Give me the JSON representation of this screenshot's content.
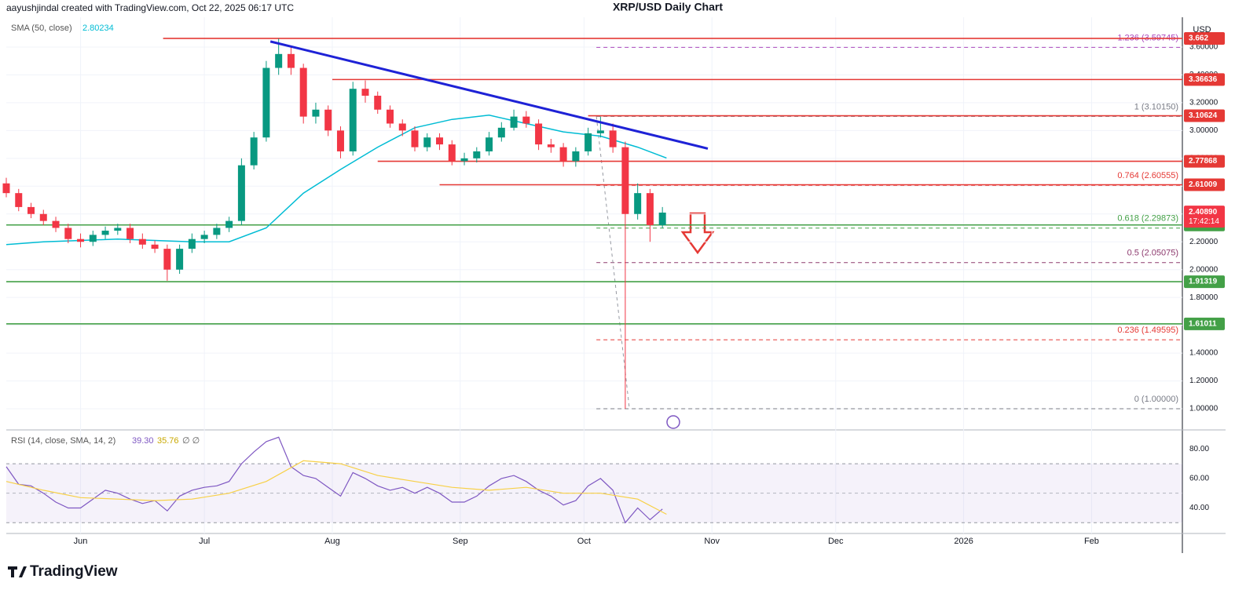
{
  "header": {
    "author_line": "aayushjindal created with TradingView.com, Oct 22, 2025 06:17 UTC",
    "title": "XRP/USD Daily Chart",
    "currency": "USD"
  },
  "chart_data": [
    {
      "type": "candlestick",
      "x": [
        0,
        3,
        6,
        9,
        12,
        15,
        18,
        21,
        24,
        27,
        30,
        33,
        36,
        39,
        42,
        45,
        48,
        51,
        54,
        57,
        60,
        63,
        66,
        69,
        72,
        75,
        78,
        81,
        84,
        87,
        90,
        93,
        96,
        99,
        102,
        105,
        108,
        111,
        114,
        117,
        120,
        123,
        126,
        129,
        132,
        135,
        138,
        141,
        144,
        147,
        150,
        153,
        156,
        159
      ],
      "open": [
        2.62,
        2.55,
        2.45,
        2.4,
        2.35,
        2.3,
        2.22,
        2.2,
        2.25,
        2.28,
        2.3,
        2.22,
        2.18,
        2.15,
        2.0,
        2.15,
        2.22,
        2.25,
        2.3,
        2.35,
        2.75,
        2.95,
        3.45,
        3.55,
        3.45,
        3.1,
        3.15,
        3.0,
        2.85,
        3.3,
        3.25,
        3.15,
        3.05,
        3.0,
        2.88,
        2.95,
        2.9,
        2.78,
        2.8,
        2.85,
        2.95,
        3.02,
        3.1,
        3.05,
        2.9,
        2.88,
        2.78,
        2.85,
        2.98,
        3.0,
        2.88,
        2.4,
        2.55,
        2.32
      ],
      "high": [
        2.66,
        2.58,
        2.48,
        2.43,
        2.38,
        2.33,
        2.26,
        2.28,
        2.31,
        2.33,
        2.33,
        2.26,
        2.21,
        2.18,
        2.18,
        2.26,
        2.28,
        2.33,
        2.38,
        2.8,
        2.99,
        3.5,
        3.66,
        3.6,
        3.48,
        3.2,
        3.18,
        3.03,
        3.35,
        3.36,
        3.28,
        3.18,
        3.08,
        3.03,
        2.98,
        2.98,
        2.93,
        2.84,
        2.88,
        2.99,
        3.06,
        3.15,
        3.14,
        3.08,
        2.94,
        2.91,
        2.88,
        3.02,
        3.1,
        3.05,
        2.92,
        2.62,
        2.58,
        2.45
      ],
      "low": [
        2.52,
        2.42,
        2.37,
        2.32,
        2.27,
        2.19,
        2.16,
        2.17,
        2.22,
        2.25,
        2.19,
        2.15,
        2.12,
        1.92,
        1.97,
        2.12,
        2.19,
        2.22,
        2.27,
        2.32,
        2.72,
        2.92,
        3.4,
        3.4,
        3.05,
        3.05,
        2.96,
        2.8,
        2.82,
        3.2,
        3.12,
        3.02,
        2.96,
        2.85,
        2.85,
        2.86,
        2.75,
        2.75,
        2.77,
        2.82,
        2.92,
        3.0,
        3.02,
        2.86,
        2.84,
        2.74,
        2.74,
        2.82,
        2.95,
        2.84,
        1.0,
        2.36,
        2.2,
        2.3
      ],
      "close": [
        2.55,
        2.45,
        2.4,
        2.35,
        2.3,
        2.22,
        2.2,
        2.25,
        2.28,
        2.3,
        2.22,
        2.18,
        2.15,
        2.0,
        2.15,
        2.22,
        2.25,
        2.3,
        2.35,
        2.75,
        2.95,
        3.45,
        3.55,
        3.45,
        3.1,
        3.15,
        3.0,
        2.85,
        3.3,
        3.25,
        3.15,
        3.05,
        3.0,
        2.88,
        2.95,
        2.9,
        2.78,
        2.8,
        2.85,
        2.95,
        3.02,
        3.1,
        3.05,
        2.9,
        2.88,
        2.78,
        2.85,
        2.98,
        3.0,
        2.88,
        2.4,
        2.55,
        2.32,
        2.41
      ],
      "up_color": "#089981",
      "down_color": "#f23645",
      "xlim": [
        0,
        285
      ],
      "xticks": [
        {
          "value": 18,
          "label": "Jun"
        },
        {
          "value": 48,
          "label": "Jul"
        },
        {
          "value": 79,
          "label": "Aug"
        },
        {
          "value": 110,
          "label": "Sep"
        },
        {
          "value": 140,
          "label": "Oct"
        },
        {
          "value": 171,
          "label": "Nov"
        },
        {
          "value": 201,
          "label": "Dec"
        },
        {
          "value": 232,
          "label": "2026"
        },
        {
          "value": 263,
          "label": "Feb"
        }
      ],
      "ylim": [
        0.848,
        3.814
      ],
      "yticks": [
        {
          "value": 1.0,
          "label": "1.00000"
        },
        {
          "value": 1.2,
          "label": "1.20000"
        },
        {
          "value": 1.4,
          "label": "1.40000"
        },
        {
          "value": 1.6,
          "label": "1.60000"
        },
        {
          "value": 1.8,
          "label": "1.80000"
        },
        {
          "value": 2.0,
          "label": "2.00000"
        },
        {
          "value": 2.2,
          "label": "2.20000"
        },
        {
          "value": 2.4,
          "label": "2.40000"
        },
        {
          "value": 2.6,
          "label": "2.60000"
        },
        {
          "value": 2.8,
          "label": "2.80000"
        },
        {
          "value": 3.0,
          "label": "3.00000"
        },
        {
          "value": 3.2,
          "label": "3.20000"
        },
        {
          "value": 3.4,
          "label": "3.40000"
        },
        {
          "value": 3.6,
          "label": "3.60000"
        }
      ],
      "sma": {
        "name": "SMA (50, close)",
        "value": 2.80234,
        "color": "#00bcd4",
        "x": [
          0,
          9,
          18,
          27,
          36,
          45,
          54,
          63,
          72,
          81,
          90,
          99,
          108,
          117,
          126,
          135,
          144,
          153,
          160
        ],
        "values": [
          2.18,
          2.2,
          2.21,
          2.22,
          2.21,
          2.2,
          2.2,
          2.3,
          2.55,
          2.72,
          2.88,
          3.02,
          3.08,
          3.11,
          3.05,
          2.99,
          2.96,
          2.88,
          2.80234
        ]
      },
      "levels": [
        {
          "value": 3.662,
          "start": 38,
          "color": "#e53935"
        },
        {
          "value": 3.36636,
          "start": 79,
          "color": "#e53935"
        },
        {
          "value": 3.10624,
          "start": 141,
          "color": "#e53935"
        },
        {
          "value": 2.77868,
          "start": 90,
          "color": "#e53935"
        },
        {
          "value": 2.61009,
          "start": 105,
          "color": "#e53935"
        },
        {
          "value": 2.32107,
          "start": 0,
          "color": "#43a047"
        },
        {
          "value": 1.91319,
          "start": 0,
          "color": "#43a047"
        },
        {
          "value": 1.61011,
          "start": 0,
          "color": "#43a047"
        }
      ],
      "fib": [
        {
          "value": 3.59745,
          "label": "1.236 (3.59745)",
          "color": "#ab47bc"
        },
        {
          "value": 3.1015,
          "label": "1 (3.10150)",
          "color": "#787b86"
        },
        {
          "value": 2.60555,
          "label": "0.764 (2.60555)",
          "color": "#e53935"
        },
        {
          "value": 2.29873,
          "label": "0.618 (2.29873)",
          "color": "#43a047"
        },
        {
          "value": 2.05075,
          "label": "0.5 (2.05075)",
          "color": "#8d3a6e"
        },
        {
          "value": 1.49595,
          "label": "0.236 (1.49595)",
          "color": "#e53935"
        },
        {
          "value": 1.0,
          "label": "0 (1.00000)",
          "color": "#787b86"
        }
      ],
      "fib_anchor": {
        "x": [
          143,
          151
        ],
        "values": [
          3.1015,
          1.0
        ]
      },
      "trendline": {
        "x": [
          64,
          170
        ],
        "values": [
          3.64,
          2.87
        ],
        "color": "#1e22d6"
      },
      "last_price": {
        "value": 2.4089,
        "label": "2.40890",
        "countdown": "17:42:14",
        "color": "#f23645"
      }
    },
    {
      "type": "line",
      "name": "RSI (14, close, SMA, 14, 2)",
      "extra": "∅ ∅",
      "ylim": [
        22.7,
        90.8
      ],
      "yticks": [
        {
          "value": 40,
          "label": "40.00"
        },
        {
          "value": 60,
          "label": "60.00"
        },
        {
          "value": 80,
          "label": "80.00"
        }
      ],
      "band": [
        30,
        70
      ],
      "midline": 50,
      "series": [
        {
          "color": "#7e57c2",
          "last_label": "39.30",
          "x": [
            0,
            3,
            6,
            9,
            12,
            15,
            18,
            21,
            24,
            27,
            30,
            33,
            36,
            39,
            42,
            45,
            48,
            51,
            54,
            57,
            60,
            63,
            66,
            69,
            72,
            75,
            78,
            81,
            84,
            87,
            90,
            93,
            96,
            99,
            102,
            105,
            108,
            111,
            114,
            117,
            120,
            123,
            126,
            129,
            132,
            135,
            138,
            141,
            144,
            147,
            150,
            153,
            156,
            159
          ],
          "values": [
            68,
            56,
            55,
            50,
            44,
            40,
            40,
            46,
            52,
            50,
            46,
            43,
            45,
            38,
            48,
            52,
            54,
            55,
            58,
            70,
            78,
            85,
            88,
            68,
            62,
            60,
            54,
            48,
            64,
            60,
            55,
            52,
            54,
            50,
            54,
            50,
            44,
            44,
            48,
            55,
            60,
            62,
            58,
            52,
            48,
            42,
            45,
            55,
            60,
            52,
            30,
            40,
            32,
            39.3
          ]
        },
        {
          "color": "#f7d046",
          "last_label": "35.76",
          "x": [
            0,
            9,
            18,
            27,
            36,
            45,
            54,
            63,
            72,
            81,
            90,
            99,
            108,
            117,
            126,
            135,
            144,
            153,
            160
          ],
          "values": [
            58,
            52,
            47,
            46,
            45,
            46,
            50,
            58,
            72,
            70,
            62,
            58,
            54,
            52,
            54,
            50,
            50,
            46,
            35.76
          ]
        }
      ]
    }
  ],
  "footer": {
    "brand": "TradingView"
  }
}
